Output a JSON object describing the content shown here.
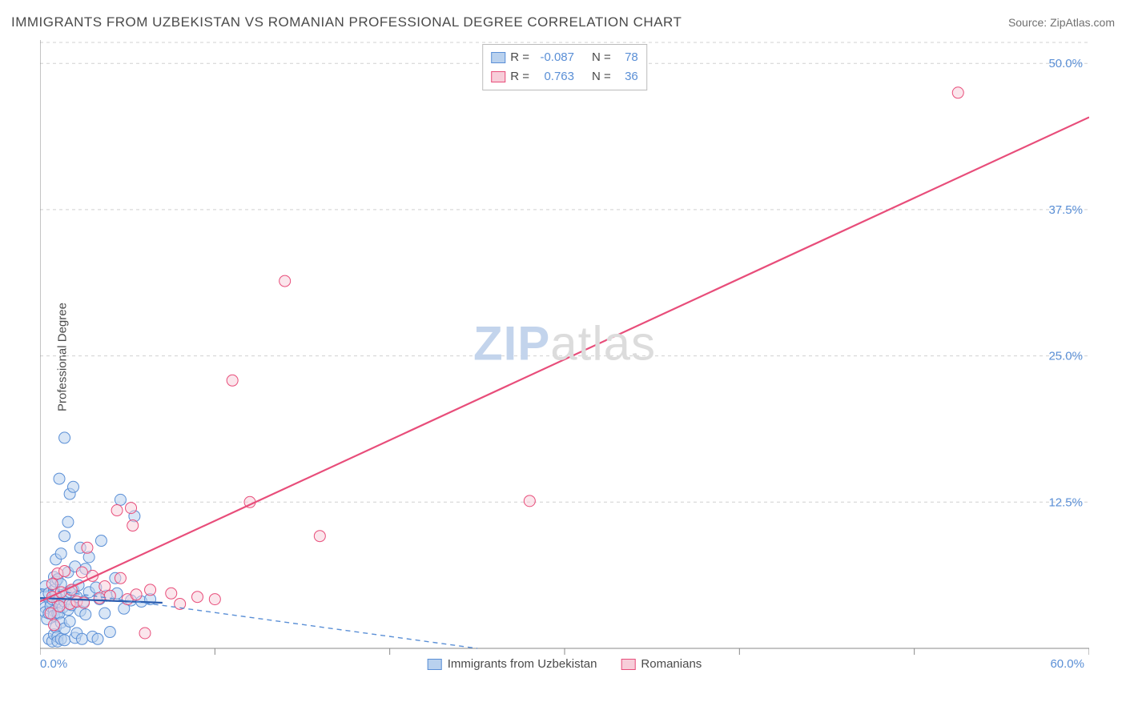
{
  "header": {
    "title": "IMMIGRANTS FROM UZBEKISTAN VS ROMANIAN PROFESSIONAL DEGREE CORRELATION CHART",
    "source_prefix": "Source: ",
    "source_name": "ZipAtlas.com"
  },
  "y_axis": {
    "label": "Professional Degree"
  },
  "watermark": {
    "zip": "ZIP",
    "atlas": "atlas"
  },
  "chart": {
    "type": "scatter",
    "background_color": "#ffffff",
    "grid_color": "#d0d0d0",
    "axis_color": "#888888",
    "label_color": "#5a8fd6",
    "xlim": [
      0,
      60
    ],
    "ylim": [
      0,
      52
    ],
    "x_origin_label": "0.0%",
    "x_max_label": "60.0%",
    "y_ticks": [
      {
        "value": 12.5,
        "label": "12.5%"
      },
      {
        "value": 25.0,
        "label": "25.0%"
      },
      {
        "value": 37.5,
        "label": "37.5%"
      },
      {
        "value": 50.0,
        "label": "50.0%"
      }
    ],
    "x_tick_step": 10,
    "marker_radius": 7,
    "marker_stroke_width": 1,
    "series": [
      {
        "id": "uzbekistan",
        "label": "Immigrants from Uzbekistan",
        "fill": "#b9d1ee",
        "stroke": "#5a8fd6",
        "fill_opacity": 0.55,
        "R": "-0.087",
        "N": "78",
        "trend": {
          "x1": 0,
          "y1": 5.1,
          "x2": 25,
          "y2": 0,
          "color": "#5a8fd6",
          "dash": "6 5",
          "width": 1.4
        },
        "trend_solid": {
          "x1": 0,
          "y1": 4.3,
          "x2": 7,
          "y2": 3.9,
          "color": "#2a5db0",
          "width": 2.2
        },
        "points": [
          [
            0.3,
            4.5
          ],
          [
            0.3,
            3.5
          ],
          [
            0.3,
            3.1
          ],
          [
            0.3,
            5.3
          ],
          [
            0.4,
            2.5
          ],
          [
            0.5,
            4.7
          ],
          [
            0.5,
            3.0
          ],
          [
            0.5,
            0.8
          ],
          [
            0.6,
            4.0
          ],
          [
            0.6,
            3.6
          ],
          [
            0.7,
            4.2
          ],
          [
            0.7,
            0.6
          ],
          [
            0.8,
            5.0
          ],
          [
            0.8,
            1.2
          ],
          [
            0.8,
            6.1
          ],
          [
            0.8,
            3.2
          ],
          [
            0.8,
            2.8
          ],
          [
            0.9,
            4.6
          ],
          [
            0.9,
            1.8
          ],
          [
            0.9,
            5.7
          ],
          [
            0.9,
            7.6
          ],
          [
            1.0,
            3.0
          ],
          [
            1.0,
            4.0
          ],
          [
            1.0,
            1.0
          ],
          [
            1.0,
            5.9
          ],
          [
            1.0,
            0.6
          ],
          [
            1.1,
            4.2
          ],
          [
            1.1,
            3.0
          ],
          [
            1.1,
            14.5
          ],
          [
            1.2,
            5.5
          ],
          [
            1.2,
            8.1
          ],
          [
            1.2,
            2.2
          ],
          [
            1.2,
            0.8
          ],
          [
            1.3,
            3.5
          ],
          [
            1.4,
            4.0
          ],
          [
            1.4,
            9.6
          ],
          [
            1.4,
            1.7
          ],
          [
            1.4,
            0.7
          ],
          [
            1.4,
            18.0
          ],
          [
            1.5,
            4.7
          ],
          [
            1.6,
            3.3
          ],
          [
            1.6,
            6.5
          ],
          [
            1.6,
            10.8
          ],
          [
            1.7,
            4.8
          ],
          [
            1.7,
            2.3
          ],
          [
            1.7,
            13.2
          ],
          [
            1.8,
            3.7
          ],
          [
            1.9,
            5.0
          ],
          [
            1.9,
            13.8
          ],
          [
            2.0,
            0.9
          ],
          [
            2.0,
            7.0
          ],
          [
            2.1,
            4.4
          ],
          [
            2.1,
            1.3
          ],
          [
            2.2,
            5.4
          ],
          [
            2.3,
            3.2
          ],
          [
            2.3,
            8.6
          ],
          [
            2.4,
            0.8
          ],
          [
            2.5,
            4.0
          ],
          [
            2.6,
            2.9
          ],
          [
            2.6,
            6.8
          ],
          [
            2.8,
            4.8
          ],
          [
            2.8,
            7.8
          ],
          [
            3.0,
            1.0
          ],
          [
            3.2,
            5.2
          ],
          [
            3.3,
            0.8
          ],
          [
            3.4,
            4.2
          ],
          [
            3.5,
            9.2
          ],
          [
            3.7,
            3.0
          ],
          [
            3.8,
            4.5
          ],
          [
            4.0,
            1.4
          ],
          [
            4.3,
            6.0
          ],
          [
            4.4,
            4.7
          ],
          [
            4.6,
            12.7
          ],
          [
            4.8,
            3.4
          ],
          [
            5.2,
            4.1
          ],
          [
            5.4,
            11.3
          ],
          [
            5.8,
            4.0
          ],
          [
            6.3,
            4.2
          ]
        ]
      },
      {
        "id": "romanians",
        "label": "Romanians",
        "fill": "#f7cdd9",
        "stroke": "#e84d7a",
        "fill_opacity": 0.5,
        "R": "0.763",
        "N": "36",
        "trend": {
          "x1": 0,
          "y1": 4.0,
          "x2": 60,
          "y2": 45.4,
          "color": "#e84d7a",
          "dash": null,
          "width": 2.2
        },
        "points": [
          [
            0.6,
            3.0
          ],
          [
            0.7,
            5.5
          ],
          [
            0.7,
            4.4
          ],
          [
            0.8,
            2.0
          ],
          [
            1.0,
            6.4
          ],
          [
            1.1,
            3.6
          ],
          [
            1.2,
            4.8
          ],
          [
            1.4,
            6.6
          ],
          [
            1.7,
            3.8
          ],
          [
            1.8,
            5.0
          ],
          [
            2.1,
            4.0
          ],
          [
            2.4,
            6.5
          ],
          [
            2.5,
            3.9
          ],
          [
            2.7,
            8.6
          ],
          [
            3.0,
            6.2
          ],
          [
            3.4,
            4.3
          ],
          [
            3.7,
            5.3
          ],
          [
            4.0,
            4.5
          ],
          [
            4.4,
            11.8
          ],
          [
            4.6,
            6.0
          ],
          [
            5.0,
            4.2
          ],
          [
            5.2,
            12.0
          ],
          [
            5.3,
            10.5
          ],
          [
            5.5,
            4.6
          ],
          [
            6.0,
            1.3
          ],
          [
            6.3,
            5.0
          ],
          [
            7.5,
            4.7
          ],
          [
            8.0,
            3.8
          ],
          [
            9.0,
            4.4
          ],
          [
            10.0,
            4.2
          ],
          [
            11.0,
            22.9
          ],
          [
            12.0,
            12.5
          ],
          [
            14.0,
            31.4
          ],
          [
            16.0,
            9.6
          ],
          [
            28.0,
            12.6
          ],
          [
            52.5,
            47.5
          ]
        ]
      }
    ]
  },
  "legend_top": {
    "R_label": "R =",
    "N_label": "N ="
  }
}
